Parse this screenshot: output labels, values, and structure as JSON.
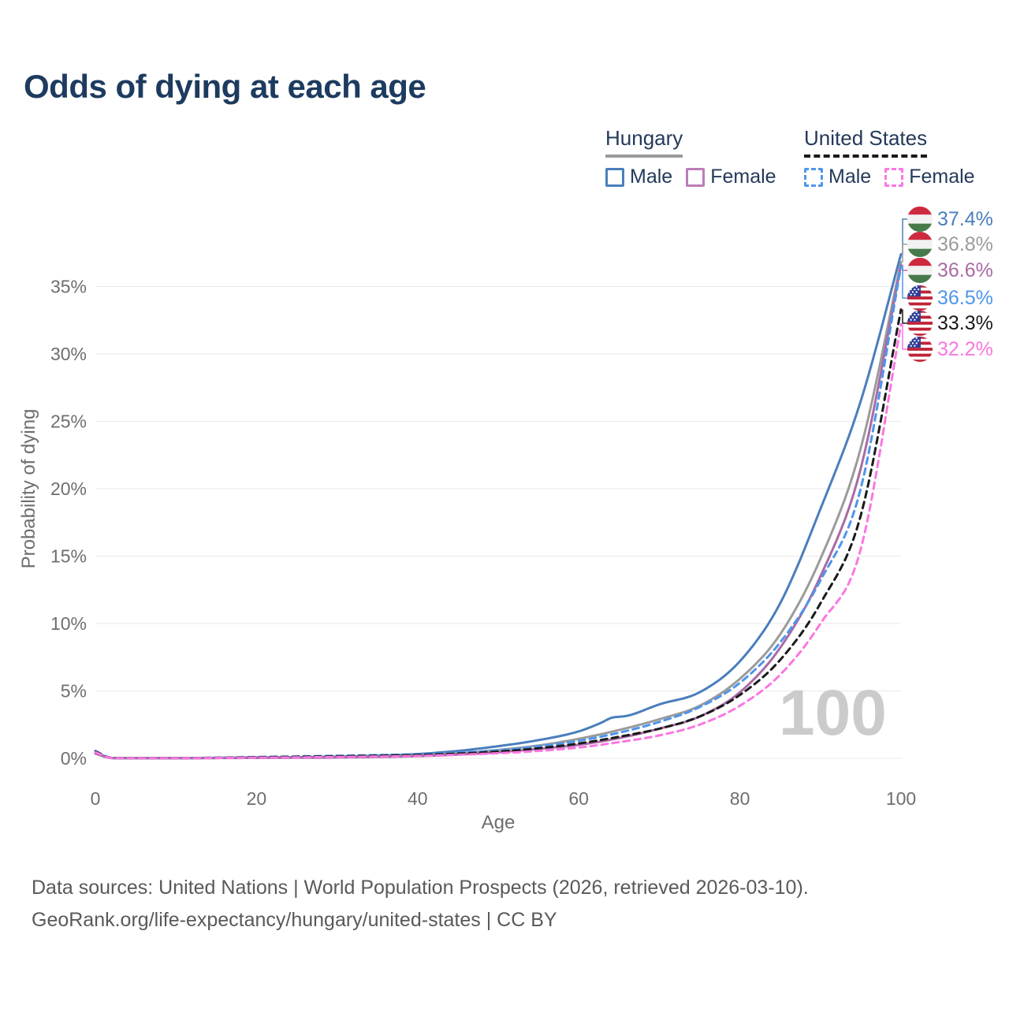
{
  "title": "Odds of dying at each age",
  "legend": {
    "groups": [
      {
        "label": "Hungary",
        "line_style": "solid",
        "underline_color": "#9b9b9b",
        "items": [
          {
            "label": "Male",
            "color": "#4a7ebc"
          },
          {
            "label": "Female",
            "color": "#bd7cb8"
          }
        ]
      },
      {
        "label": "United States",
        "line_style": "dashed",
        "underline_color": "#1a1a1a",
        "items": [
          {
            "label": "Male",
            "color": "#4e95ec"
          },
          {
            "label": "Female",
            "color": "#fb76e1"
          }
        ]
      }
    ]
  },
  "chart_data": {
    "type": "line",
    "title": "Odds of dying at each age",
    "xlabel": "Age",
    "ylabel": "Probability of dying",
    "xlim": [
      0,
      100
    ],
    "ylim": [
      0,
      38
    ],
    "grid": true,
    "legend_position": "top-right",
    "watermark": "100",
    "x_ticks": [
      {
        "v": 0,
        "label": "0"
      },
      {
        "v": 20,
        "label": "20"
      },
      {
        "v": 40,
        "label": "40"
      },
      {
        "v": 60,
        "label": "60"
      },
      {
        "v": 80,
        "label": "80"
      },
      {
        "v": 100,
        "label": "100"
      }
    ],
    "y_ticks": [
      {
        "v": 0,
        "label": "0%"
      },
      {
        "v": 5,
        "label": "5%"
      },
      {
        "v": 10,
        "label": "10%"
      },
      {
        "v": 15,
        "label": "15%"
      },
      {
        "v": 20,
        "label": "20%"
      },
      {
        "v": 25,
        "label": "25%"
      },
      {
        "v": 30,
        "label": "30%"
      },
      {
        "v": 35,
        "label": "35%"
      }
    ],
    "series": [
      {
        "name": "Hungary Male",
        "country": "Hungary",
        "group": "Male",
        "color": "#4a7ebc",
        "dashed": false,
        "flag": "hu",
        "end_label": "37.4%",
        "points": [
          [
            0,
            0.45
          ],
          [
            2,
            0.03
          ],
          [
            5,
            0.012
          ],
          [
            10,
            0.015
          ],
          [
            15,
            0.035
          ],
          [
            20,
            0.07
          ],
          [
            25,
            0.09
          ],
          [
            30,
            0.13
          ],
          [
            35,
            0.2
          ],
          [
            40,
            0.32
          ],
          [
            45,
            0.55
          ],
          [
            50,
            0.9
          ],
          [
            55,
            1.35
          ],
          [
            60,
            2.0
          ],
          [
            63,
            2.7
          ],
          [
            64,
            3.0
          ],
          [
            66,
            3.15
          ],
          [
            70,
            4.0
          ],
          [
            75,
            4.9
          ],
          [
            80,
            7.2
          ],
          [
            85,
            11.5
          ],
          [
            90,
            18.5
          ],
          [
            95,
            26.5
          ],
          [
            100,
            37.4
          ]
        ]
      },
      {
        "name": "Hungary",
        "country": "Hungary",
        "group": "Both sexes",
        "color": "#9b9b9b",
        "dashed": false,
        "flag": "hu",
        "end_label": "36.8%",
        "points": [
          [
            0,
            0.4
          ],
          [
            2,
            0.025
          ],
          [
            5,
            0.01
          ],
          [
            10,
            0.012
          ],
          [
            15,
            0.028
          ],
          [
            20,
            0.05
          ],
          [
            30,
            0.1
          ],
          [
            40,
            0.22
          ],
          [
            45,
            0.38
          ],
          [
            50,
            0.62
          ],
          [
            55,
            0.95
          ],
          [
            60,
            1.45
          ],
          [
            65,
            2.1
          ],
          [
            70,
            2.9
          ],
          [
            75,
            3.9
          ],
          [
            80,
            5.9
          ],
          [
            85,
            9.2
          ],
          [
            90,
            14.8
          ],
          [
            95,
            23.0
          ],
          [
            100,
            36.8
          ]
        ]
      },
      {
        "name": "Hungary Female",
        "country": "Hungary",
        "group": "Female",
        "color": "#a96ba5",
        "dashed": false,
        "flag": "hu",
        "end_label": "36.6%",
        "points": [
          [
            0,
            0.35
          ],
          [
            2,
            0.02
          ],
          [
            5,
            0.009
          ],
          [
            10,
            0.01
          ],
          [
            15,
            0.02
          ],
          [
            20,
            0.03
          ],
          [
            30,
            0.06
          ],
          [
            40,
            0.16
          ],
          [
            45,
            0.28
          ],
          [
            50,
            0.45
          ],
          [
            55,
            0.7
          ],
          [
            60,
            1.0
          ],
          [
            65,
            1.5
          ],
          [
            70,
            2.2
          ],
          [
            75,
            3.1
          ],
          [
            80,
            4.9
          ],
          [
            85,
            8.2
          ],
          [
            90,
            13.5
          ],
          [
            95,
            21.5
          ],
          [
            100,
            36.6
          ]
        ]
      },
      {
        "name": "United States Male",
        "country": "United States",
        "group": "Male",
        "color": "#4e95ec",
        "dashed": true,
        "flag": "us",
        "end_label": "36.5%",
        "points": [
          [
            0,
            0.55
          ],
          [
            2,
            0.035
          ],
          [
            5,
            0.012
          ],
          [
            10,
            0.014
          ],
          [
            15,
            0.05
          ],
          [
            20,
            0.1
          ],
          [
            25,
            0.14
          ],
          [
            30,
            0.19
          ],
          [
            35,
            0.24
          ],
          [
            40,
            0.3
          ],
          [
            45,
            0.42
          ],
          [
            50,
            0.6
          ],
          [
            55,
            0.9
          ],
          [
            60,
            1.3
          ],
          [
            65,
            1.9
          ],
          [
            70,
            2.7
          ],
          [
            75,
            3.8
          ],
          [
            80,
            5.6
          ],
          [
            85,
            8.6
          ],
          [
            90,
            13.2
          ],
          [
            95,
            20.0
          ],
          [
            100,
            36.5
          ]
        ]
      },
      {
        "name": "United States",
        "country": "United States",
        "group": "Both sexes",
        "color": "#1a1a1a",
        "dashed": true,
        "flag": "us",
        "end_label": "33.3%",
        "points": [
          [
            0,
            0.5
          ],
          [
            2,
            0.03
          ],
          [
            5,
            0.011
          ],
          [
            10,
            0.013
          ],
          [
            15,
            0.04
          ],
          [
            20,
            0.08
          ],
          [
            30,
            0.15
          ],
          [
            40,
            0.25
          ],
          [
            50,
            0.5
          ],
          [
            55,
            0.75
          ],
          [
            60,
            1.1
          ],
          [
            65,
            1.6
          ],
          [
            70,
            2.2
          ],
          [
            75,
            3.1
          ],
          [
            80,
            4.7
          ],
          [
            85,
            7.3
          ],
          [
            90,
            11.5
          ],
          [
            95,
            18.0
          ],
          [
            100,
            33.3
          ]
        ]
      },
      {
        "name": "United States Female",
        "country": "United States",
        "group": "Female",
        "color": "#fb76e1",
        "dashed": true,
        "flag": "us",
        "end_label": "32.2%",
        "points": [
          [
            0,
            0.45
          ],
          [
            2,
            0.025
          ],
          [
            5,
            0.01
          ],
          [
            10,
            0.012
          ],
          [
            15,
            0.03
          ],
          [
            20,
            0.05
          ],
          [
            30,
            0.1
          ],
          [
            40,
            0.18
          ],
          [
            50,
            0.38
          ],
          [
            55,
            0.55
          ],
          [
            60,
            0.8
          ],
          [
            65,
            1.2
          ],
          [
            70,
            1.7
          ],
          [
            75,
            2.5
          ],
          [
            80,
            3.9
          ],
          [
            85,
            6.2
          ],
          [
            90,
            10.0
          ],
          [
            95,
            15.5
          ],
          [
            100,
            32.2
          ]
        ]
      }
    ]
  },
  "footer": {
    "line1": "Data sources: United Nations | World Population Prospects (2026, retrieved 2026-03-10).",
    "line2": "GeoRank.org/life-expectancy/hungary/united-states | CC BY"
  }
}
